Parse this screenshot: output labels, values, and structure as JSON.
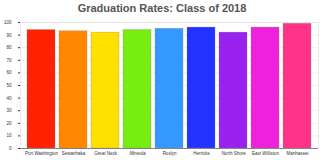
{
  "chart_data": {
    "type": "bar",
    "title": "Graduation Rates: Class of 2018",
    "categories": [
      "Port Washington",
      "Sewanhaka",
      "Great Neck",
      "Mineola",
      "Roslyn",
      "Herricks",
      "North Shore",
      "East Williston",
      "Manhasset"
    ],
    "values": [
      94,
      93,
      92,
      94,
      95,
      96,
      92,
      96,
      99
    ],
    "colors": [
      "#ff2200",
      "#ff8800",
      "#ffe000",
      "#77ee11",
      "#3399ff",
      "#2233ff",
      "#9922ee",
      "#ee22dd",
      "#ff3388"
    ],
    "ylim": [
      0,
      100
    ],
    "yticks": [
      0,
      10,
      20,
      30,
      40,
      50,
      60,
      70,
      80,
      90,
      100
    ],
    "grid": true
  }
}
